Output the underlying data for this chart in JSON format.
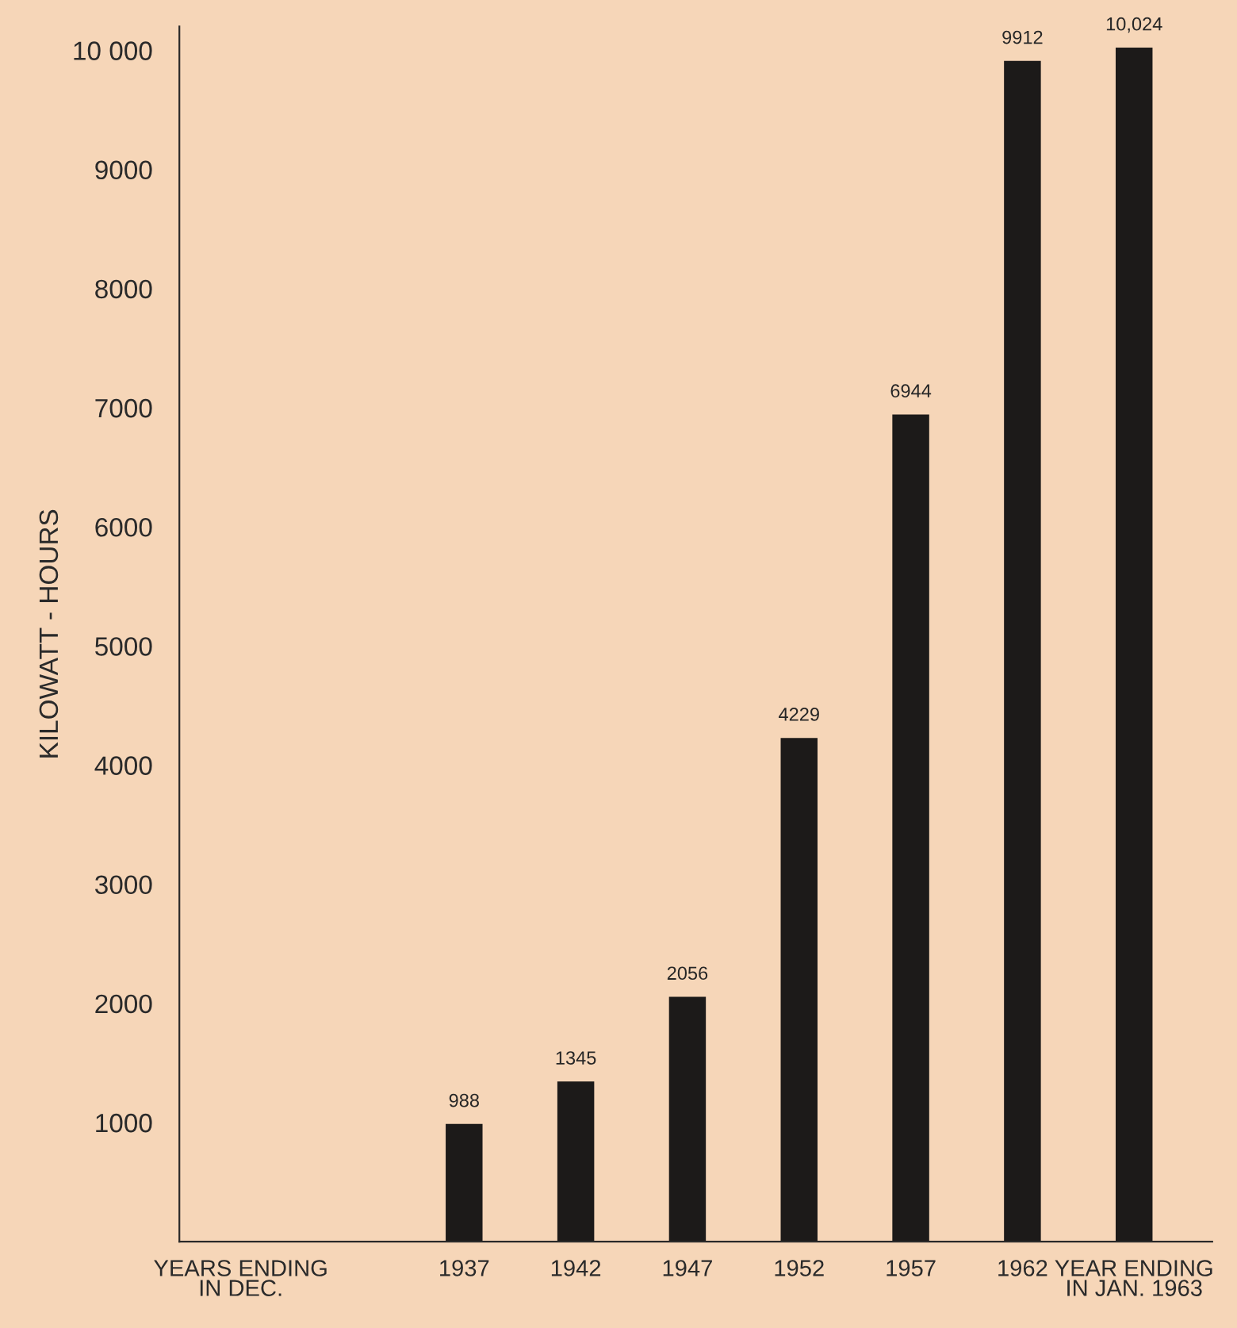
{
  "chart_data": {
    "type": "bar",
    "categories": [
      "YEARS ENDING\nIN DEC.",
      null,
      "1937",
      "1942",
      "1947",
      "1952",
      "1957",
      "1962",
      "YEAR ENDING\nIN JAN. 1963"
    ],
    "values": [
      null,
      null,
      988,
      1345,
      2056,
      4229,
      6944,
      9912,
      10024
    ],
    "value_labels": [
      null,
      null,
      "988",
      "1345",
      "2056",
      "4229",
      "6944",
      "9912",
      "10,024"
    ],
    "color": "#1c1a19",
    "ylabel": "KILOWATT - HOURS",
    "ylim": [
      0,
      10200
    ],
    "yticks": [
      1000,
      2000,
      3000,
      4000,
      5000,
      6000,
      7000,
      8000,
      9000,
      {
        "value": 10000,
        "label": "10 000"
      }
    ],
    "grid": false,
    "legend": false
  }
}
